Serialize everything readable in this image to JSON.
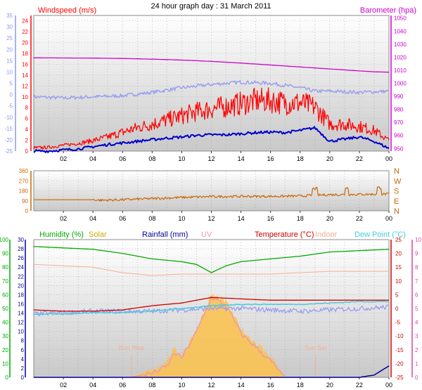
{
  "title": "24 hour graph day : 31 March 2011",
  "colors": {
    "wind": "#ff0000",
    "gust_avg": "#0000cc",
    "baro": "#cc00cc",
    "temp_band": "#9aa0ee",
    "dir": "#cc6600",
    "humidity": "#00aa00",
    "solar": "#ccaa00",
    "rain": "#000099",
    "uv": "#ee99aa",
    "temperature": "#cc0000",
    "indoor": "#f4b092",
    "dew": "#44ccdd",
    "left_axis_blue": "#8899ee",
    "pink_axis": "#dd44aa"
  },
  "chart_data": [
    {
      "type": "line",
      "title": "24 hour graph day : 31 March 2011",
      "x_ticks": [
        "02",
        "04",
        "06",
        "08",
        "10",
        "12",
        "14",
        "16",
        "18",
        "20",
        "22",
        "00"
      ],
      "axes": {
        "outer_left": {
          "ticks": [
            -25,
            -20,
            -15,
            -10,
            -5,
            0,
            5,
            10,
            15,
            20,
            25,
            30,
            35
          ],
          "range": [
            -25,
            35
          ]
        },
        "left": {
          "label": "Windspeed (m/s)",
          "ticks": [
            0,
            2,
            4,
            6,
            8,
            10,
            12,
            14,
            16,
            18,
            20,
            22,
            24
          ],
          "range": [
            0,
            25
          ]
        },
        "right": {
          "label": "Barometer (hpa)",
          "ticks": [
            950,
            960,
            970,
            980,
            990,
            1000,
            1010,
            1020,
            1030,
            1040,
            1050
          ],
          "range": [
            948,
            1052
          ]
        }
      },
      "series": [
        {
          "name": "Windspeed (m/s)",
          "axis": "left",
          "x": [
            0,
            1,
            2,
            3,
            4,
            5,
            6,
            7,
            8,
            9,
            10,
            11,
            12,
            13,
            14,
            15,
            16,
            17,
            18,
            19,
            20,
            21,
            22,
            23,
            24
          ],
          "y": [
            0.5,
            0.6,
            1.0,
            1.3,
            1.8,
            2.4,
            3.2,
            4.0,
            4.6,
            5.3,
            6.0,
            6.7,
            7.2,
            7.6,
            8.1,
            8.6,
            8.6,
            8.2,
            8.2,
            7.5,
            4.6,
            4.6,
            4.2,
            3.5,
            1.8
          ]
        },
        {
          "axis": "left",
          "x": [
            0,
            1,
            2,
            3,
            4,
            5,
            6,
            7,
            8,
            9,
            10,
            11,
            12,
            13,
            14,
            15,
            16,
            17,
            18,
            19,
            20,
            21,
            22,
            23,
            24
          ],
          "y": [
            0,
            0,
            0.2,
            0.4,
            0.8,
            1.2,
            1.5,
            1.8,
            2.1,
            2.4,
            2.6,
            2.9,
            3.0,
            3.0,
            3.2,
            3.4,
            3.5,
            3.4,
            3.8,
            4.3,
            1.8,
            2.2,
            2.6,
            1.8,
            0.5
          ]
        },
        {
          "name": "Barometer (hpa)",
          "axis": "right",
          "x": [
            0,
            2,
            4,
            6,
            8,
            10,
            12,
            14,
            16,
            18,
            20,
            22,
            23,
            24
          ],
          "y": [
            1019.5,
            1019.4,
            1019.3,
            1019.0,
            1018.5,
            1017.8,
            1016.8,
            1015.5,
            1014.0,
            1012.5,
            1011.0,
            1009.5,
            1008.8,
            1008.5
          ]
        },
        {
          "axis": "outer_left",
          "x": [
            0,
            2,
            4,
            6,
            8,
            10,
            12,
            14,
            16,
            18,
            19,
            20,
            22,
            24
          ],
          "y": [
            -1,
            -1.5,
            -1,
            -0.5,
            1,
            3,
            4.5,
            5.5,
            5,
            3,
            1.5,
            1.5,
            1,
            1.5
          ]
        }
      ]
    },
    {
      "type": "line",
      "x_ticks": [
        "02",
        "04",
        "06",
        "08",
        "10",
        "12",
        "14",
        "16",
        "18",
        "20",
        "22",
        "00"
      ],
      "axes": {
        "left": {
          "ticks": [
            0,
            90,
            180,
            270,
            360
          ],
          "range": [
            0,
            360
          ]
        },
        "right": {
          "ticks": [
            "N",
            "W",
            "S",
            "E",
            "N"
          ]
        }
      },
      "series": [
        {
          "axis": "left",
          "x": [
            0,
            4,
            4.5,
            6,
            8,
            10,
            12,
            14,
            16,
            18,
            19,
            20,
            22,
            24
          ],
          "y": [
            100,
            100,
            95,
            100,
            110,
            120,
            128,
            130,
            130,
            133,
            140,
            145,
            148,
            150
          ]
        }
      ]
    },
    {
      "type": "line",
      "x_ticks": [
        "02",
        "04",
        "06",
        "08",
        "10",
        "12",
        "14",
        "16",
        "18",
        "20",
        "22",
        "00"
      ],
      "annotations": [
        "Sun Rise",
        "Sun Set"
      ],
      "axes": {
        "humidity": {
          "label": "Humidity (%)",
          "ticks": [
            0,
            10,
            20,
            30,
            40,
            50,
            60,
            70,
            80,
            90,
            100
          ],
          "range": [
            0,
            100
          ]
        },
        "rain": {
          "label": "Rainfall (mm)",
          "ticks": [
            0,
            2,
            4,
            6,
            8,
            10,
            12,
            14,
            16,
            18,
            20,
            22,
            24,
            26,
            28,
            30
          ],
          "range": [
            0,
            30
          ]
        },
        "temperature": {
          "label": "Temperature (°C)",
          "ticks": [
            25,
            20,
            15,
            10,
            5,
            0,
            -5,
            -10,
            -15,
            -20,
            -25
          ],
          "range": [
            -25,
            25
          ]
        },
        "uv": {
          "label": "UV",
          "ticks": [
            0,
            1,
            2,
            3,
            4,
            5,
            6,
            7,
            8,
            9,
            10
          ],
          "range": [
            0,
            10
          ]
        }
      },
      "legend": [
        "Humidity (%)",
        "Solar",
        "Rainfall (mm)",
        "UV",
        "Temperature (°C)",
        "Indoor",
        "Dew Point (°C)"
      ],
      "series": [
        {
          "name": "Humidity (%)",
          "axis": "humidity",
          "x": [
            0,
            2,
            4,
            6,
            8,
            10,
            11,
            12,
            13,
            14,
            16,
            18,
            20,
            22,
            24
          ],
          "y": [
            95,
            94,
            93,
            90,
            86,
            84,
            82,
            76,
            81,
            84,
            86,
            88,
            91,
            92,
            93
          ]
        },
        {
          "name": "Indoor",
          "axis": "temperature",
          "x": [
            0,
            2,
            4,
            6,
            8,
            10,
            12,
            14,
            16,
            18,
            20,
            22,
            24
          ],
          "y": [
            16,
            15.5,
            15,
            13,
            12,
            12.5,
            12.5,
            12.5,
            12.5,
            13,
            13.5,
            13.5,
            13.5
          ]
        },
        {
          "name": "Temperature (°C)",
          "axis": "temperature",
          "x": [
            0,
            2,
            4,
            6,
            8,
            10,
            12,
            14,
            16,
            18,
            20,
            22,
            24
          ],
          "y": [
            -0.5,
            -1,
            -1,
            -0.5,
            1,
            2,
            4,
            3.5,
            3,
            3,
            3,
            3,
            3
          ]
        },
        {
          "name": "Dew Point (°C)",
          "axis": "temperature",
          "x": [
            0,
            2,
            4,
            6,
            8,
            10,
            12,
            14,
            16,
            18,
            20,
            22,
            24
          ],
          "y": [
            -2,
            -2,
            -1.5,
            -1.5,
            -1,
            0,
            1,
            1.5,
            1.5,
            1.5,
            2,
            2.5,
            2.5
          ]
        },
        {
          "axis": "temperature",
          "x": [
            0,
            2,
            4,
            6,
            8,
            10,
            12,
            14,
            16,
            18,
            20,
            22,
            24
          ],
          "y": [
            -2,
            -1.5,
            -1,
            -1,
            -1,
            -0.5,
            0,
            0,
            -0.5,
            -1,
            -0.5,
            0,
            0.5
          ]
        },
        {
          "name": "Solar",
          "axis": "uv",
          "x": [
            6.5,
            7,
            8,
            9,
            9.5,
            10,
            11,
            12,
            13,
            14,
            15,
            16,
            16.5,
            17,
            24
          ],
          "y": [
            0,
            0.2,
            0.5,
            1.2,
            2.0,
            1.6,
            3.5,
            6.0,
            5.5,
            3.5,
            2.5,
            1.5,
            0.8,
            0,
            0
          ]
        },
        {
          "name": "UV",
          "axis": "uv",
          "x": [
            6.5,
            8,
            9,
            9.5,
            10,
            11,
            12,
            13,
            14,
            15,
            16,
            16.5,
            17
          ],
          "y": [
            0,
            0.3,
            0.8,
            1.8,
            1.4,
            3.3,
            5.8,
            5.2,
            3.2,
            2.2,
            1.2,
            0.6,
            0
          ]
        },
        {
          "name": "Rainfall (mm)",
          "axis": "rain",
          "x": [
            0,
            22,
            23,
            23.5,
            24
          ],
          "y": [
            0,
            0,
            0.5,
            1.5,
            2.5
          ]
        }
      ]
    }
  ]
}
